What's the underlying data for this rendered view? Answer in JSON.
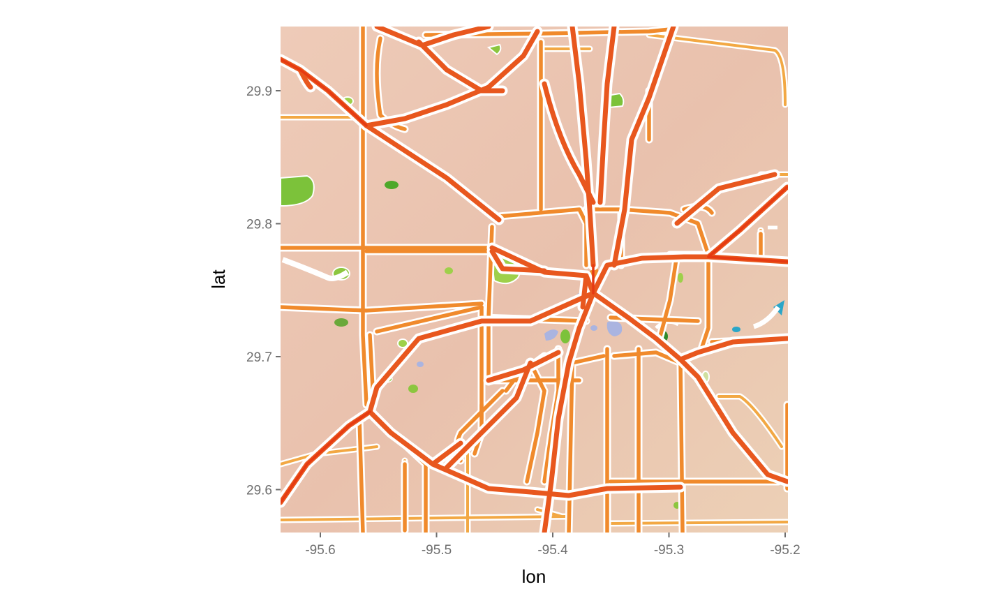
{
  "map": {
    "style": "watercolor",
    "x_axis": {
      "title": "lon",
      "ticks": [
        {
          "value": -95.6,
          "label": "-95.6"
        },
        {
          "value": -95.5,
          "label": "-95.5"
        },
        {
          "value": -95.4,
          "label": "-95.4"
        },
        {
          "value": -95.3,
          "label": "-95.3"
        },
        {
          "value": -95.2,
          "label": "-95.2"
        }
      ]
    },
    "y_axis": {
      "title": "lat",
      "ticks": [
        {
          "value": 29.9,
          "label": "29.9"
        },
        {
          "value": 29.8,
          "label": "29.8"
        },
        {
          "value": 29.7,
          "label": "29.7"
        },
        {
          "value": 29.6,
          "label": "29.6"
        }
      ]
    },
    "colors": {
      "land": "#ecc9b3",
      "major_road": "#e8571e",
      "arterial_road": "#f08a2c",
      "minor_road": "#f2a844",
      "park": "#8cc63f",
      "water": "#aab4e0"
    }
  }
}
